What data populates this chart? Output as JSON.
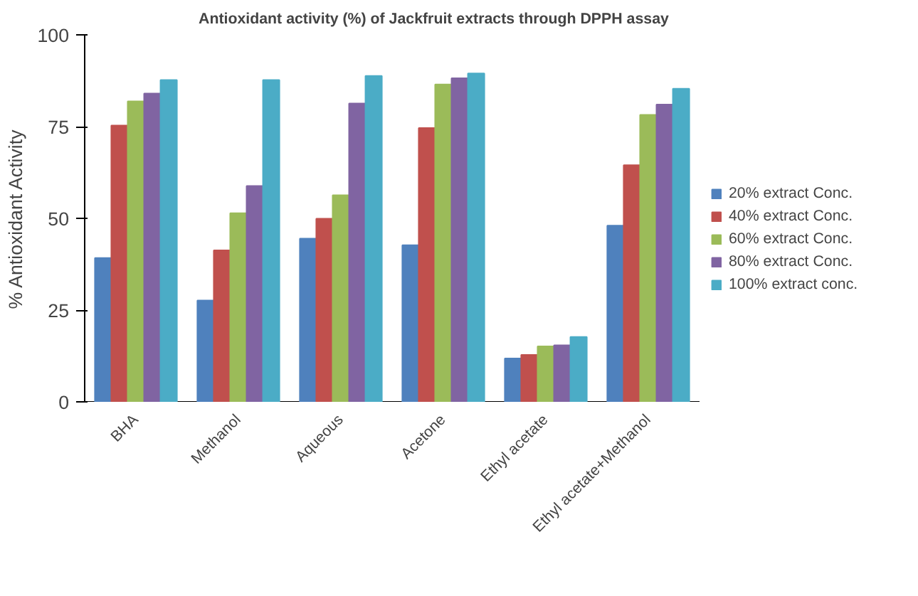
{
  "chart_data": {
    "type": "bar",
    "title": "Antioxidant activity (%) of Jackfruit extracts through DPPH assay",
    "ylabel": "% Antioxidant Activity",
    "categories": [
      "BHA",
      "Methanol",
      "Aqueous",
      "Acetone",
      "Ethyl acetate",
      "Ethyl acetate+Methanol"
    ],
    "series": [
      {
        "name": "20% extract Conc.",
        "color": "#4f81bd",
        "values": [
          39.2,
          27.6,
          44.5,
          42.7,
          11.8,
          48
        ]
      },
      {
        "name": "40% extract Conc.",
        "color": "#c0504d",
        "values": [
          75.3,
          41.3,
          49.9,
          74.6,
          12.8,
          64.5
        ]
      },
      {
        "name": "60% extract Conc.",
        "color": "#9bbb59",
        "values": [
          81.9,
          51.4,
          56.3,
          86.5,
          15.1,
          78.2
        ]
      },
      {
        "name": "80% extract Conc.",
        "color": "#8064a2",
        "values": [
          84,
          58.8,
          81.3,
          88.2,
          15.4,
          81
        ]
      },
      {
        "name": "100% extract conc.",
        "color": "#4bacc6",
        "values": [
          87.7,
          87.7,
          88.8,
          89.5,
          17.7,
          85.3
        ]
      }
    ],
    "ylim": [
      0,
      100
    ],
    "yticks": [
      0,
      25,
      50,
      75,
      100
    ],
    "grid": false,
    "legend": "right"
  }
}
